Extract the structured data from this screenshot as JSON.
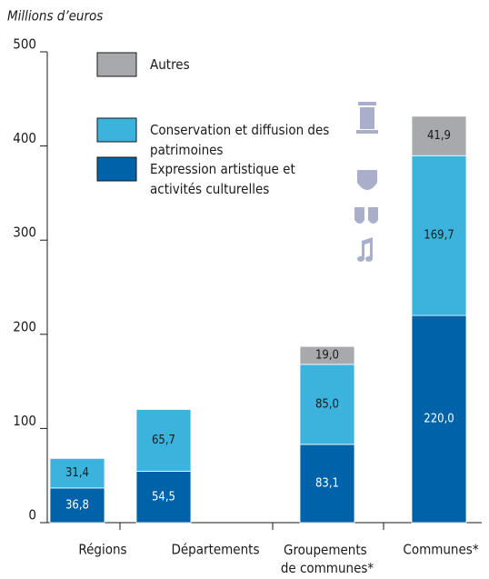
{
  "chart_data": {
    "type": "stacked_bar",
    "y_label": "Millions d’euros",
    "categories": [
      "Régions",
      "Départements",
      "Groupements de communes*",
      "Communes*"
    ],
    "series": [
      {
        "name": "Expression artistique et activités culturelles",
        "color": "#0062a8",
        "values": [
          36.8,
          54.5,
          83.1,
          220.0
        ],
        "value_labels": [
          "36,8",
          "54,5",
          "83,1",
          "220,0"
        ]
      },
      {
        "name": "Conservation et diffusion des patrimoines",
        "color": "#3bb3dc",
        "values": [
          31.4,
          65.7,
          85.0,
          169.7
        ],
        "value_labels": [
          "31,4",
          "65,7",
          "85,0",
          "169,7"
        ]
      },
      {
        "name": "Autres",
        "color": "#a7a9ac",
        "values": [
          null,
          null,
          19.0,
          41.9
        ],
        "value_labels": [
          null,
          null,
          "19,0",
          "41,9"
        ]
      }
    ],
    "ylim": [
      0,
      500
    ],
    "yticks": [
      0,
      100,
      200,
      300,
      400,
      500
    ]
  }
}
